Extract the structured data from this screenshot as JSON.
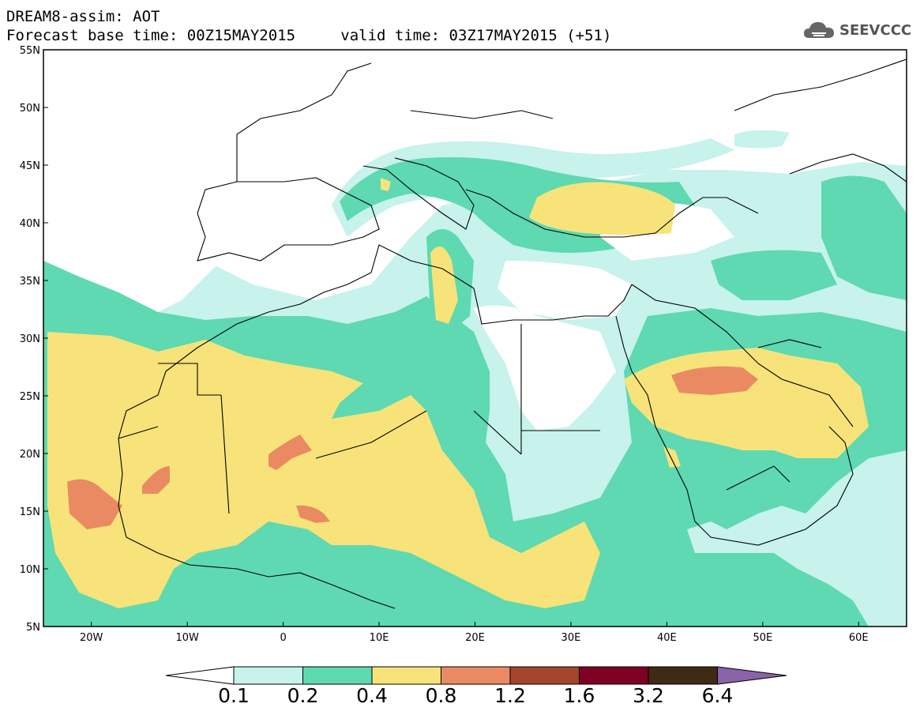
{
  "header": {
    "title": "DREAM8-assim: AOT",
    "base_time": "Forecast base time: 00Z15MAY2015",
    "valid_time": "valid time: 03Z17MAY2015 (+51)"
  },
  "logo": {
    "text": "SEEVCCC",
    "icon": "cloud-icon"
  },
  "map": {
    "lon_range": [
      -25,
      65
    ],
    "lat_range": [
      5,
      55
    ],
    "lat_labels": [
      "5N",
      "10N",
      "15N",
      "20N",
      "25N",
      "30N",
      "35N",
      "40N",
      "45N",
      "50N",
      "55N"
    ],
    "lon_labels": [
      "20W",
      "10W",
      "0",
      "10E",
      "20E",
      "30E",
      "40E",
      "50E",
      "60E"
    ]
  },
  "colorbar": {
    "labels": [
      "0.1",
      "0.2",
      "0.4",
      "0.8",
      "1.2",
      "1.6",
      "3.2",
      "6.4"
    ],
    "colors": [
      "#ffffff",
      "#c8f2ec",
      "#5ed9b1",
      "#f7e37a",
      "#ea8a62",
      "#a4452e",
      "#7d0025",
      "#3f2a14",
      "#8a63a8"
    ]
  }
}
